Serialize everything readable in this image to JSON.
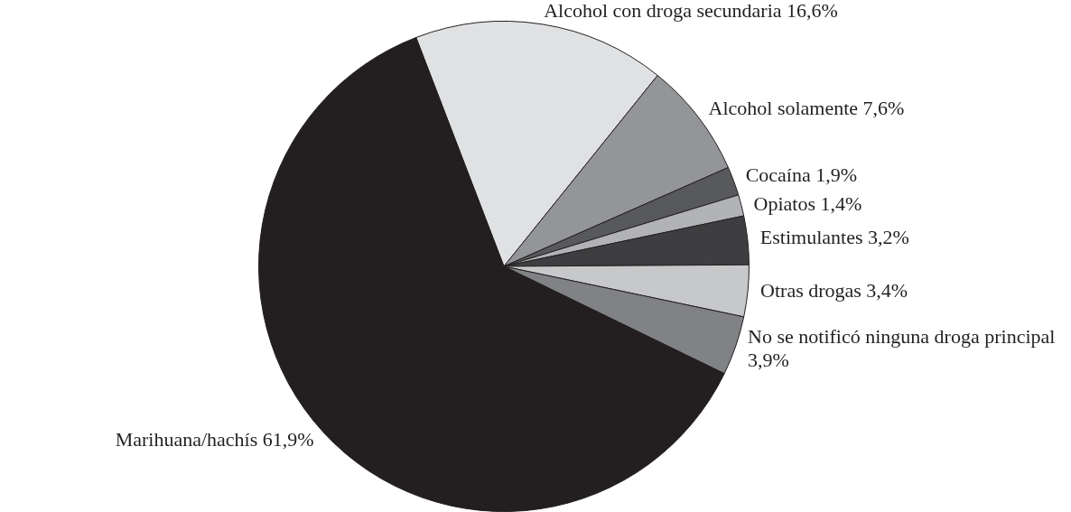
{
  "chart_data": {
    "type": "pie",
    "categories": [
      "Alcohol con droga secundaria",
      "Alcohol solamente",
      "Cocaína",
      "Opiatos",
      "Estimulantes",
      "Otras drogas",
      "No se notificó ninguna droga principal",
      "Marihuana/hachís"
    ],
    "values": [
      16.6,
      7.6,
      1.9,
      1.4,
      3.2,
      3.4,
      3.9,
      61.9
    ],
    "colors": [
      "#e0e1e3",
      "#939598",
      "#58595b",
      "#b1b3b6",
      "#3e3e40",
      "#c7c8ca",
      "#808285",
      "#231f20"
    ],
    "value_labels": [
      "16,6%",
      "7,6%",
      "1,9%",
      "1,4%",
      "3,2%",
      "3,4%",
      "3,9%",
      "61,9%"
    ],
    "legend": false
  }
}
